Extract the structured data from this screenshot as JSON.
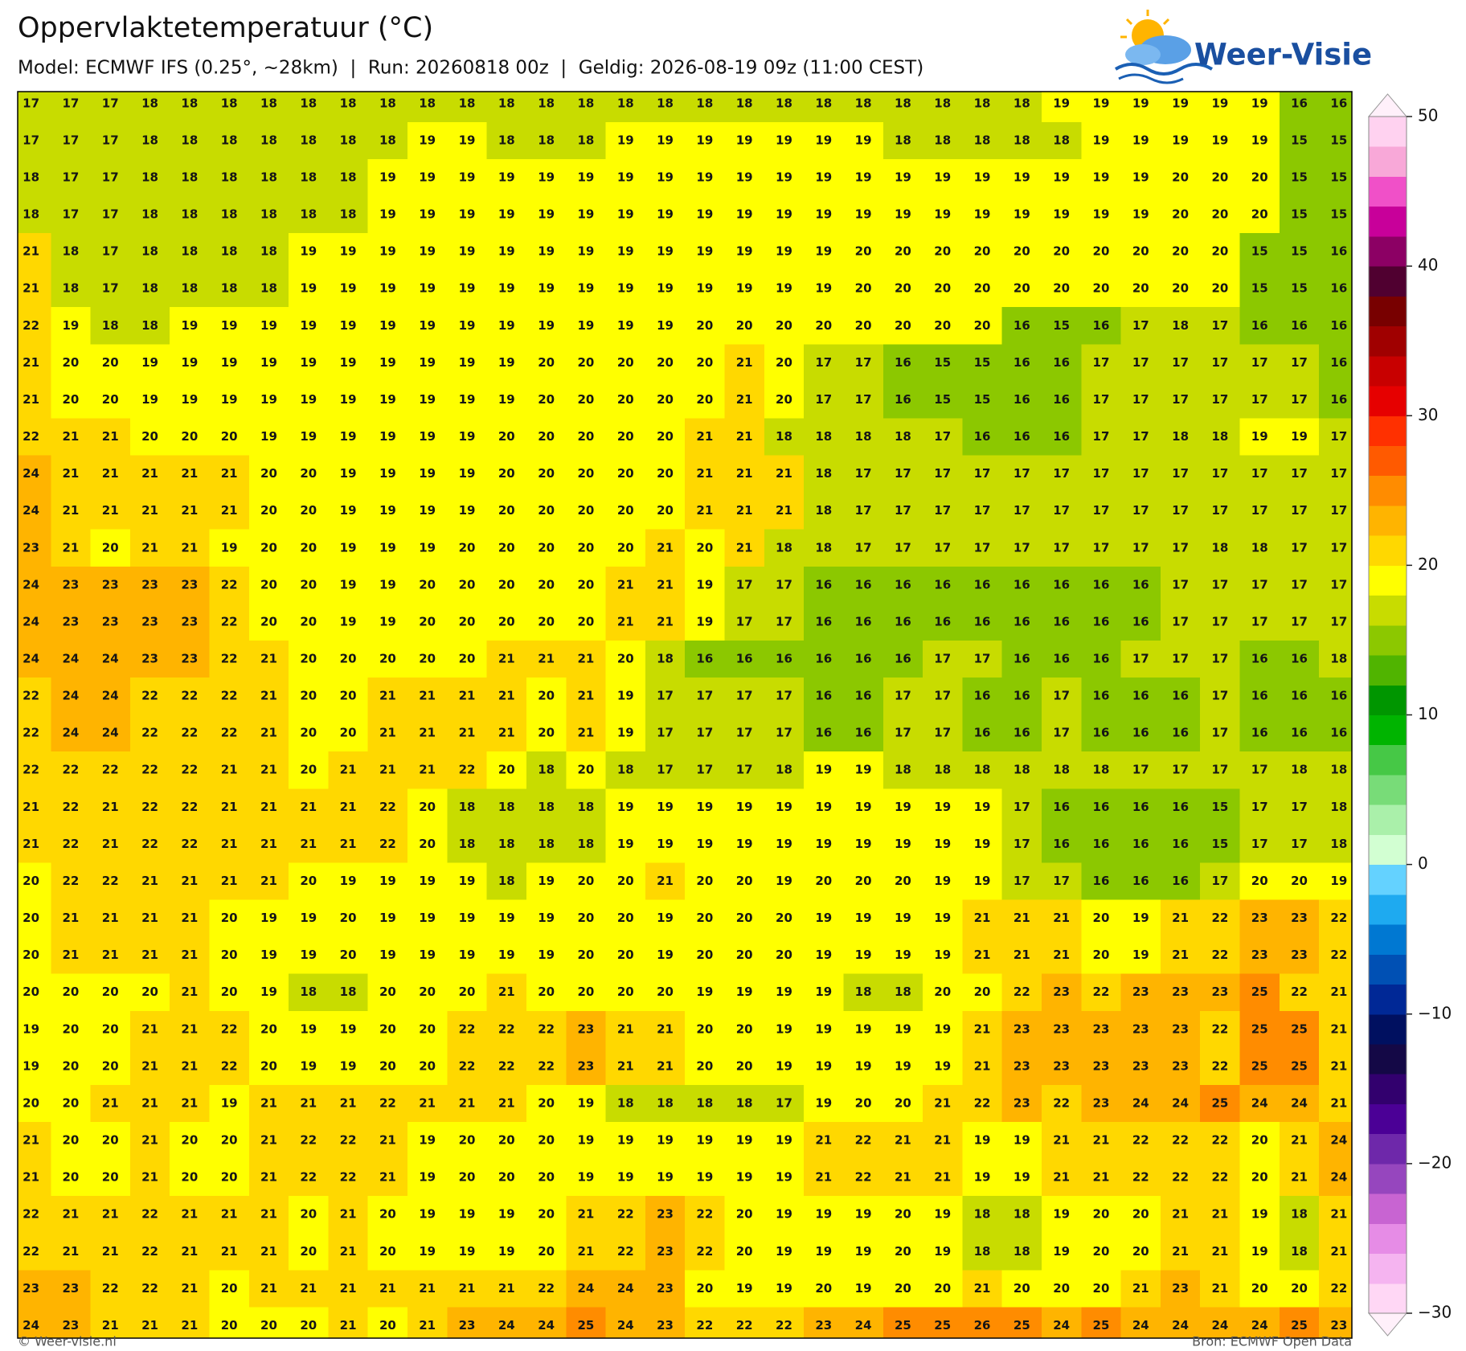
{
  "header": {
    "title": "Oppervlaktetemperatuur (°C)",
    "subtitle": "Model: ECMWF IFS (0.25°, ~28km)  |  Run: 20260818 00z  |  Geldig: 2026-08-19 09z (11:00 CEST)",
    "logo": "Weer-Visie"
  },
  "map": {
    "rows": [
      [
        17,
        17,
        17,
        18,
        18,
        18,
        18,
        18,
        18,
        18,
        18,
        18,
        18,
        18,
        18,
        18,
        18,
        18,
        18,
        18,
        18,
        18,
        18,
        18,
        18,
        18,
        19,
        19,
        19,
        19,
        19,
        19,
        16,
        16
      ],
      [
        17,
        17,
        17,
        18,
        18,
        18,
        18,
        18,
        18,
        18,
        19,
        19,
        18,
        18,
        18,
        19,
        19,
        19,
        19,
        19,
        19,
        19,
        18,
        18,
        18,
        18,
        18,
        19,
        19,
        19,
        19,
        19,
        15,
        15
      ],
      [
        18,
        17,
        17,
        18,
        18,
        18,
        18,
        18,
        18,
        19,
        19,
        19,
        19,
        19,
        19,
        19,
        19,
        19,
        19,
        19,
        19,
        19,
        19,
        19,
        19,
        19,
        19,
        19,
        19,
        20,
        20,
        20,
        15,
        15
      ],
      [
        18,
        17,
        17,
        18,
        18,
        18,
        18,
        18,
        18,
        19,
        19,
        19,
        19,
        19,
        19,
        19,
        19,
        19,
        19,
        19,
        19,
        19,
        19,
        19,
        19,
        19,
        19,
        19,
        19,
        20,
        20,
        20,
        15,
        15
      ],
      [
        21,
        18,
        17,
        18,
        18,
        18,
        18,
        19,
        19,
        19,
        19,
        19,
        19,
        19,
        19,
        19,
        19,
        19,
        19,
        19,
        19,
        20,
        20,
        20,
        20,
        20,
        20,
        20,
        20,
        20,
        20,
        15,
        15,
        16
      ],
      [
        21,
        18,
        17,
        18,
        18,
        18,
        18,
        19,
        19,
        19,
        19,
        19,
        19,
        19,
        19,
        19,
        19,
        19,
        19,
        19,
        19,
        20,
        20,
        20,
        20,
        20,
        20,
        20,
        20,
        20,
        20,
        15,
        15,
        16
      ],
      [
        22,
        19,
        18,
        18,
        19,
        19,
        19,
        19,
        19,
        19,
        19,
        19,
        19,
        19,
        19,
        19,
        19,
        20,
        20,
        20,
        20,
        20,
        20,
        20,
        20,
        16,
        15,
        16,
        17,
        18,
        17,
        16,
        16,
        16
      ],
      [
        21,
        20,
        20,
        19,
        19,
        19,
        19,
        19,
        19,
        19,
        19,
        19,
        19,
        20,
        20,
        20,
        20,
        20,
        21,
        20,
        17,
        17,
        16,
        15,
        15,
        16,
        16,
        17,
        17,
        17,
        17,
        17,
        17,
        16
      ],
      [
        21,
        20,
        20,
        19,
        19,
        19,
        19,
        19,
        19,
        19,
        19,
        19,
        19,
        20,
        20,
        20,
        20,
        20,
        21,
        20,
        17,
        17,
        16,
        15,
        15,
        16,
        16,
        17,
        17,
        17,
        17,
        17,
        17,
        16
      ],
      [
        22,
        21,
        21,
        20,
        20,
        20,
        19,
        19,
        19,
        19,
        19,
        19,
        20,
        20,
        20,
        20,
        20,
        21,
        21,
        18,
        18,
        18,
        18,
        17,
        16,
        16,
        16,
        17,
        17,
        18,
        18,
        19,
        19,
        17
      ],
      [
        24,
        21,
        21,
        21,
        21,
        21,
        20,
        20,
        19,
        19,
        19,
        19,
        20,
        20,
        20,
        20,
        20,
        21,
        21,
        21,
        18,
        17,
        17,
        17,
        17,
        17,
        17,
        17,
        17,
        17,
        17,
        17,
        17,
        17
      ],
      [
        24,
        21,
        21,
        21,
        21,
        21,
        20,
        20,
        19,
        19,
        19,
        19,
        20,
        20,
        20,
        20,
        20,
        21,
        21,
        21,
        18,
        17,
        17,
        17,
        17,
        17,
        17,
        17,
        17,
        17,
        17,
        17,
        17,
        17
      ],
      [
        23,
        21,
        20,
        21,
        21,
        19,
        20,
        20,
        19,
        19,
        19,
        20,
        20,
        20,
        20,
        20,
        21,
        20,
        21,
        18,
        18,
        17,
        17,
        17,
        17,
        17,
        17,
        17,
        17,
        17,
        18,
        18,
        17,
        17
      ],
      [
        24,
        23,
        23,
        23,
        23,
        22,
        20,
        20,
        19,
        19,
        20,
        20,
        20,
        20,
        20,
        21,
        21,
        19,
        17,
        17,
        16,
        16,
        16,
        16,
        16,
        16,
        16,
        16,
        16,
        17,
        17,
        17,
        17,
        17
      ],
      [
        24,
        23,
        23,
        23,
        23,
        22,
        20,
        20,
        19,
        19,
        20,
        20,
        20,
        20,
        20,
        21,
        21,
        19,
        17,
        17,
        16,
        16,
        16,
        16,
        16,
        16,
        16,
        16,
        16,
        17,
        17,
        17,
        17,
        17
      ],
      [
        24,
        24,
        24,
        23,
        23,
        22,
        21,
        20,
        20,
        20,
        20,
        20,
        21,
        21,
        21,
        20,
        18,
        16,
        16,
        16,
        16,
        16,
        16,
        17,
        17,
        16,
        16,
        16,
        17,
        17,
        17,
        16,
        16,
        18
      ],
      [
        22,
        24,
        24,
        22,
        22,
        22,
        21,
        20,
        20,
        21,
        21,
        21,
        21,
        20,
        21,
        19,
        17,
        17,
        17,
        17,
        16,
        16,
        17,
        17,
        16,
        16,
        17,
        16,
        16,
        16,
        17,
        16,
        16,
        16
      ],
      [
        22,
        24,
        24,
        22,
        22,
        22,
        21,
        20,
        20,
        21,
        21,
        21,
        21,
        20,
        21,
        19,
        17,
        17,
        17,
        17,
        16,
        16,
        17,
        17,
        16,
        16,
        17,
        16,
        16,
        16,
        17,
        16,
        16,
        16
      ],
      [
        22,
        22,
        22,
        22,
        22,
        21,
        21,
        20,
        21,
        21,
        21,
        22,
        20,
        18,
        20,
        18,
        17,
        17,
        17,
        18,
        19,
        19,
        18,
        18,
        18,
        18,
        18,
        18,
        17,
        17,
        17,
        17,
        18,
        18
      ],
      [
        21,
        22,
        21,
        22,
        22,
        21,
        21,
        21,
        21,
        22,
        20,
        18,
        18,
        18,
        18,
        19,
        19,
        19,
        19,
        19,
        19,
        19,
        19,
        19,
        19,
        17,
        16,
        16,
        16,
        16,
        15,
        17,
        17,
        18
      ],
      [
        21,
        22,
        21,
        22,
        22,
        21,
        21,
        21,
        21,
        22,
        20,
        18,
        18,
        18,
        18,
        19,
        19,
        19,
        19,
        19,
        19,
        19,
        19,
        19,
        19,
        17,
        16,
        16,
        16,
        16,
        15,
        17,
        17,
        18
      ],
      [
        20,
        22,
        22,
        21,
        21,
        21,
        21,
        20,
        19,
        19,
        19,
        19,
        18,
        19,
        20,
        20,
        21,
        20,
        20,
        19,
        20,
        20,
        20,
        19,
        19,
        17,
        17,
        16,
        16,
        16,
        17,
        20,
        20,
        19
      ],
      [
        20,
        21,
        21,
        21,
        21,
        20,
        19,
        19,
        20,
        19,
        19,
        19,
        19,
        19,
        20,
        20,
        19,
        20,
        20,
        20,
        19,
        19,
        19,
        19,
        21,
        21,
        21,
        20,
        19,
        21,
        22,
        23,
        23,
        22
      ],
      [
        20,
        21,
        21,
        21,
        21,
        20,
        19,
        19,
        20,
        19,
        19,
        19,
        19,
        19,
        20,
        20,
        19,
        20,
        20,
        20,
        19,
        19,
        19,
        19,
        21,
        21,
        21,
        20,
        19,
        21,
        22,
        23,
        23,
        22
      ],
      [
        20,
        20,
        20,
        20,
        21,
        20,
        19,
        18,
        18,
        20,
        20,
        20,
        21,
        20,
        20,
        20,
        20,
        19,
        19,
        19,
        19,
        18,
        18,
        20,
        20,
        22,
        23,
        22,
        23,
        23,
        23,
        25,
        22,
        21
      ],
      [
        19,
        20,
        20,
        21,
        21,
        22,
        20,
        19,
        19,
        20,
        20,
        22,
        22,
        22,
        23,
        21,
        21,
        20,
        20,
        19,
        19,
        19,
        19,
        19,
        21,
        23,
        23,
        23,
        23,
        23,
        22,
        25,
        25,
        21
      ],
      [
        19,
        20,
        20,
        21,
        21,
        22,
        20,
        19,
        19,
        20,
        20,
        22,
        22,
        22,
        23,
        21,
        21,
        20,
        20,
        19,
        19,
        19,
        19,
        19,
        21,
        23,
        23,
        23,
        23,
        23,
        22,
        25,
        25,
        21
      ],
      [
        20,
        20,
        21,
        21,
        21,
        19,
        21,
        21,
        21,
        22,
        21,
        21,
        21,
        20,
        19,
        18,
        18,
        18,
        18,
        17,
        19,
        20,
        20,
        21,
        22,
        23,
        22,
        23,
        24,
        24,
        25,
        24,
        24,
        21
      ],
      [
        21,
        20,
        20,
        21,
        20,
        20,
        21,
        22,
        22,
        21,
        19,
        20,
        20,
        20,
        19,
        19,
        19,
        19,
        19,
        19,
        21,
        22,
        21,
        21,
        19,
        19,
        21,
        21,
        22,
        22,
        22,
        20,
        21,
        24
      ],
      [
        21,
        20,
        20,
        21,
        20,
        20,
        21,
        22,
        22,
        21,
        19,
        20,
        20,
        20,
        19,
        19,
        19,
        19,
        19,
        19,
        21,
        22,
        21,
        21,
        19,
        19,
        21,
        21,
        22,
        22,
        22,
        20,
        21,
        24
      ],
      [
        22,
        21,
        21,
        22,
        21,
        21,
        21,
        20,
        21,
        20,
        19,
        19,
        19,
        20,
        21,
        22,
        23,
        22,
        20,
        19,
        19,
        19,
        20,
        19,
        18,
        18,
        19,
        20,
        20,
        21,
        21,
        19,
        18,
        21
      ],
      [
        22,
        21,
        21,
        22,
        21,
        21,
        21,
        20,
        21,
        20,
        19,
        19,
        19,
        20,
        21,
        22,
        23,
        22,
        20,
        19,
        19,
        19,
        20,
        19,
        18,
        18,
        19,
        20,
        20,
        21,
        21,
        19,
        18,
        21
      ],
      [
        23,
        23,
        22,
        22,
        21,
        20,
        21,
        21,
        21,
        21,
        21,
        21,
        21,
        22,
        24,
        24,
        23,
        20,
        19,
        19,
        20,
        19,
        20,
        20,
        21,
        20,
        20,
        20,
        21,
        23,
        21,
        20,
        20,
        22
      ],
      [
        24,
        23,
        21,
        21,
        21,
        20,
        20,
        20,
        21,
        20,
        21,
        23,
        24,
        24,
        25,
        24,
        23,
        22,
        22,
        22,
        23,
        24,
        25,
        25,
        26,
        25,
        24,
        25,
        24,
        24,
        24,
        24,
        25,
        23
      ]
    ]
  },
  "colorbar": {
    "lim": [
      -30,
      50
    ],
    "ticks": [
      50,
      40,
      30,
      20,
      10,
      0,
      {
        "value": -10,
        "label": "−10"
      },
      {
        "value": -20,
        "label": "−20"
      },
      {
        "value": -30,
        "label": "−30"
      }
    ],
    "colors": [
      "#ffd7f5",
      "#f5b4f0",
      "#e68ce6",
      "#c864d2",
      "#9646be",
      "#6e28aa",
      "#4b0096",
      "#32006e",
      "#140846",
      "#001060",
      "#002896",
      "#0050b4",
      "#0078d2",
      "#1eaaf0",
      "#64d2ff",
      "#d2ffd2",
      "#aaf0aa",
      "#78dc78",
      "#46c846",
      "#00b400",
      "#009600",
      "#50b400",
      "#8cc800",
      "#c8dc00",
      "#ffff00",
      "#ffd800",
      "#ffb400",
      "#ff8c00",
      "#ff5a00",
      "#ff3000",
      "#e60000",
      "#c80000",
      "#a00000",
      "#780000",
      "#500030",
      "#8c0064",
      "#c8009a",
      "#f050c8",
      "#f8a8d8",
      "#ffd2f0"
    ],
    "over": "#fff0fa",
    "under": "#fff0fa"
  },
  "footer": {
    "left": "© Weer-visie.nl",
    "right": "Bron: ECMWF Open Data"
  }
}
